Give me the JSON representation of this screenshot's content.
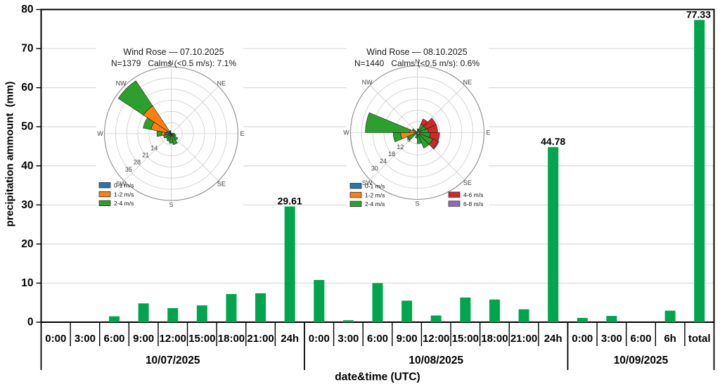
{
  "chart_data": {
    "type": "bar",
    "title": "",
    "xlabel": "date&time (UTC)",
    "ylabel": "precipitation ammount  (mm)",
    "ylim": [
      0,
      80
    ],
    "yticks": [
      0,
      10,
      20,
      30,
      40,
      50,
      60,
      70,
      80
    ],
    "grid": true,
    "bar_color": "#00A54E",
    "gridline_color": "#d9d9d9",
    "groups": [
      {
        "date": "10/07/2025",
        "categories": [
          "0:00",
          "3:00",
          "6:00",
          "9:00",
          "12:00",
          "15:00",
          "18:00",
          "21:00",
          "24h"
        ],
        "values": [
          0,
          0,
          1.5,
          4.8,
          3.6,
          4.3,
          7.2,
          7.4,
          29.61
        ]
      },
      {
        "date": "10/08/2025",
        "categories": [
          "0:00",
          "3:00",
          "6:00",
          "9:00",
          "12:00",
          "15:00",
          "18:00",
          "21:00",
          "24h"
        ],
        "values": [
          10.8,
          0.5,
          10.0,
          5.5,
          1.7,
          6.3,
          5.8,
          3.3,
          44.78
        ]
      },
      {
        "date": "10/09/2025",
        "categories": [
          "0:00",
          "3:00",
          "6:00",
          "6h",
          "total"
        ],
        "values": [
          1.1,
          1.6,
          0,
          2.94,
          77.33
        ]
      }
    ],
    "bar_labels": [
      {
        "group": 0,
        "index": 8,
        "text": "29.61"
      },
      {
        "group": 1,
        "index": 8,
        "text": "44.78"
      },
      {
        "group": 2,
        "index": 4,
        "text": "77.33"
      }
    ]
  },
  "speed_colors": {
    "0-1 m/s": "#1f77b4",
    "1-2 m/s": "#ff7f0e",
    "2-4 m/s": "#2ca02c",
    "4-6 m/s": "#d62728",
    "6-8 m/s": "#9467bd"
  },
  "wind_roses": [
    {
      "title": "Wind Rose — 07.10.2025",
      "stats": "N=1379   Calms (<0.5 m/s): 7.1%",
      "compass": [
        "N",
        "NE",
        "E",
        "SE",
        "S",
        "SW",
        "W",
        "NW"
      ],
      "rmax": 42,
      "rings": [
        7,
        14,
        21,
        28,
        35
      ],
      "ring_labels": [
        "14",
        "21",
        "28",
        "35"
      ],
      "legend": [
        {
          "label": "0-1 m/s",
          "color": "#1f77b4"
        },
        {
          "label": "1-2 m/s",
          "color": "#ff7f0e"
        },
        {
          "label": "2-4 m/s",
          "color": "#2ca02c"
        }
      ],
      "petals": [
        {
          "dir": 315,
          "segments": [
            {
              "speed": "0-1 m/s",
              "from": 0,
              "to": 2
            },
            {
              "speed": "1-2 m/s",
              "from": 2,
              "to": 21
            },
            {
              "speed": "2-4 m/s",
              "from": 21,
              "to": 40
            }
          ]
        },
        {
          "dir": 292.5,
          "segments": [
            {
              "speed": "0-1 m/s",
              "from": 0,
              "to": 3
            },
            {
              "speed": "1-2 m/s",
              "from": 3,
              "to": 13
            },
            {
              "speed": "2-4 m/s",
              "from": 13,
              "to": 18
            }
          ]
        },
        {
          "dir": 270,
          "segments": [
            {
              "speed": "0-1 m/s",
              "from": 0,
              "to": 4
            },
            {
              "speed": "1-2 m/s",
              "from": 4,
              "to": 6
            },
            {
              "speed": "2-4 m/s",
              "from": 6,
              "to": 9
            }
          ]
        },
        {
          "dir": 247.5,
          "segments": [
            {
              "speed": "1-2 m/s",
              "from": 0,
              "to": 2
            },
            {
              "speed": "2-4 m/s",
              "from": 2,
              "to": 5
            }
          ]
        },
        {
          "dir": 225,
          "segments": [
            {
              "speed": "2-4 m/s",
              "from": 0,
              "to": 4
            }
          ]
        },
        {
          "dir": 202.5,
          "segments": [
            {
              "speed": "2-4 m/s",
              "from": 0,
              "to": 5
            }
          ]
        },
        {
          "dir": 180,
          "segments": [
            {
              "speed": "2-4 m/s",
              "from": 0,
              "to": 6
            }
          ]
        },
        {
          "dir": 157.5,
          "segments": [
            {
              "speed": "2-4 m/s",
              "from": 0,
              "to": 7
            }
          ]
        },
        {
          "dir": 135,
          "segments": [
            {
              "speed": "2-4 m/s",
              "from": 0,
              "to": 5
            }
          ]
        },
        {
          "dir": 112.5,
          "segments": [
            {
              "speed": "2-4 m/s",
              "from": 0,
              "to": 3
            }
          ]
        },
        {
          "dir": 90,
          "segments": [
            {
              "speed": "2-4 m/s",
              "from": 0,
              "to": 2
            }
          ]
        },
        {
          "dir": 337.5,
          "segments": [
            {
              "speed": "2-4 m/s",
              "from": 0,
              "to": 2
            }
          ]
        }
      ]
    },
    {
      "title": "Wind Rose — 08.10.2025",
      "stats": "N=1440   Calms (<0.5 m/s): 0.6%",
      "compass": [
        "N",
        "NE",
        "E",
        "SE",
        "S",
        "SW",
        "W",
        "NW"
      ],
      "rmax": 36,
      "rings": [
        6,
        12,
        18,
        24,
        30
      ],
      "ring_labels": [
        "6",
        "12",
        "18",
        "24",
        "30"
      ],
      "legend": [
        {
          "label": "0-1 m/s",
          "color": "#1f77b4"
        },
        {
          "label": "1-2 m/s",
          "color": "#ff7f0e"
        },
        {
          "label": "2-4 m/s",
          "color": "#2ca02c"
        },
        {
          "label": "4-6 m/s",
          "color": "#d62728"
        },
        {
          "label": "6-8 m/s",
          "color": "#9467bd"
        }
      ],
      "petals": [
        {
          "dir": 281.25,
          "segments": [
            {
              "speed": "1-2 m/s",
              "from": 1,
              "to": 4
            },
            {
              "speed": "2-4 m/s",
              "from": 4,
              "to": 28
            }
          ]
        },
        {
          "dir": 258.75,
          "segments": [
            {
              "speed": "1-2 m/s",
              "from": 1,
              "to": 9
            },
            {
              "speed": "2-4 m/s",
              "from": 9,
              "to": 13
            }
          ]
        },
        {
          "dir": 236.25,
          "segments": [
            {
              "speed": "2-4 m/s",
              "from": 0,
              "to": 6
            }
          ]
        },
        {
          "dir": 303.75,
          "segments": [
            {
              "speed": "2-4 m/s",
              "from": 0,
              "to": 3
            }
          ]
        },
        {
          "dir": 33.75,
          "segments": [
            {
              "speed": "2-4 m/s",
              "from": 1,
              "to": 5
            },
            {
              "speed": "4-6 m/s",
              "from": 5,
              "to": 8
            }
          ]
        },
        {
          "dir": 56.25,
          "segments": [
            {
              "speed": "2-4 m/s",
              "from": 1,
              "to": 5
            },
            {
              "speed": "4-6 m/s",
              "from": 5,
              "to": 11
            }
          ]
        },
        {
          "dir": 78.75,
          "segments": [
            {
              "speed": "1-2 m/s",
              "from": 0,
              "to": 2
            },
            {
              "speed": "2-4 m/s",
              "from": 2,
              "to": 6
            },
            {
              "speed": "4-6 m/s",
              "from": 6,
              "to": 11
            }
          ]
        },
        {
          "dir": 101.25,
          "segments": [
            {
              "speed": "2-4 m/s",
              "from": 1,
              "to": 7
            },
            {
              "speed": "4-6 m/s",
              "from": 7,
              "to": 12
            }
          ]
        },
        {
          "dir": 123.75,
          "segments": [
            {
              "speed": "2-4 m/s",
              "from": 1,
              "to": 9
            },
            {
              "speed": "4-6 m/s",
              "from": 9,
              "to": 12
            },
            {
              "speed": "6-8 m/s",
              "from": 12,
              "to": 12.6
            }
          ]
        },
        {
          "dir": 146.25,
          "segments": [
            {
              "speed": "2-4 m/s",
              "from": 1,
              "to": 9
            }
          ]
        },
        {
          "dir": 168.75,
          "segments": [
            {
              "speed": "2-4 m/s",
              "from": 1,
              "to": 6
            }
          ]
        },
        {
          "dir": 191.25,
          "segments": [
            {
              "speed": "2-4 m/s",
              "from": 0,
              "to": 3
            }
          ]
        },
        {
          "dir": 11.25,
          "segments": [
            {
              "speed": "2-4 m/s",
              "from": 0,
              "to": 2
            }
          ]
        }
      ]
    }
  ]
}
